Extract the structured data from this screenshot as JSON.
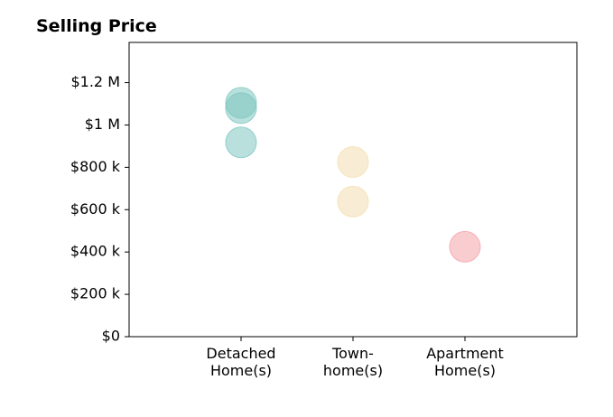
{
  "chart_data": {
    "type": "scatter",
    "title": "Selling Price",
    "xlabel": "",
    "ylabel": "",
    "categories": [
      [
        "Detached",
        "Home(s)"
      ],
      [
        "Town-",
        "home(s)"
      ],
      [
        "Apartment",
        "Home(s)"
      ]
    ],
    "y_ticks": [
      {
        "value": 0,
        "label": "$0"
      },
      {
        "value": 200000,
        "label": "$200 k"
      },
      {
        "value": 400000,
        "label": "$400 k"
      },
      {
        "value": 600000,
        "label": "$600 k"
      },
      {
        "value": 800000,
        "label": "$800 k"
      },
      {
        "value": 1000000,
        "label": "$1 M"
      },
      {
        "value": 1200000,
        "label": "$1.2 M"
      }
    ],
    "ylim": [
      0,
      1390000
    ],
    "xlim": [
      -1,
      3
    ],
    "grid": false,
    "series": [
      {
        "category_index": 0,
        "color": "#7fc7c0",
        "values": [
          1105000,
          1080000,
          918000
        ]
      },
      {
        "category_index": 1,
        "color": "#f3dfb0",
        "values": [
          825000,
          638000
        ]
      },
      {
        "category_index": 2,
        "color": "#f4a3aa",
        "values": [
          425000
        ]
      }
    ]
  }
}
